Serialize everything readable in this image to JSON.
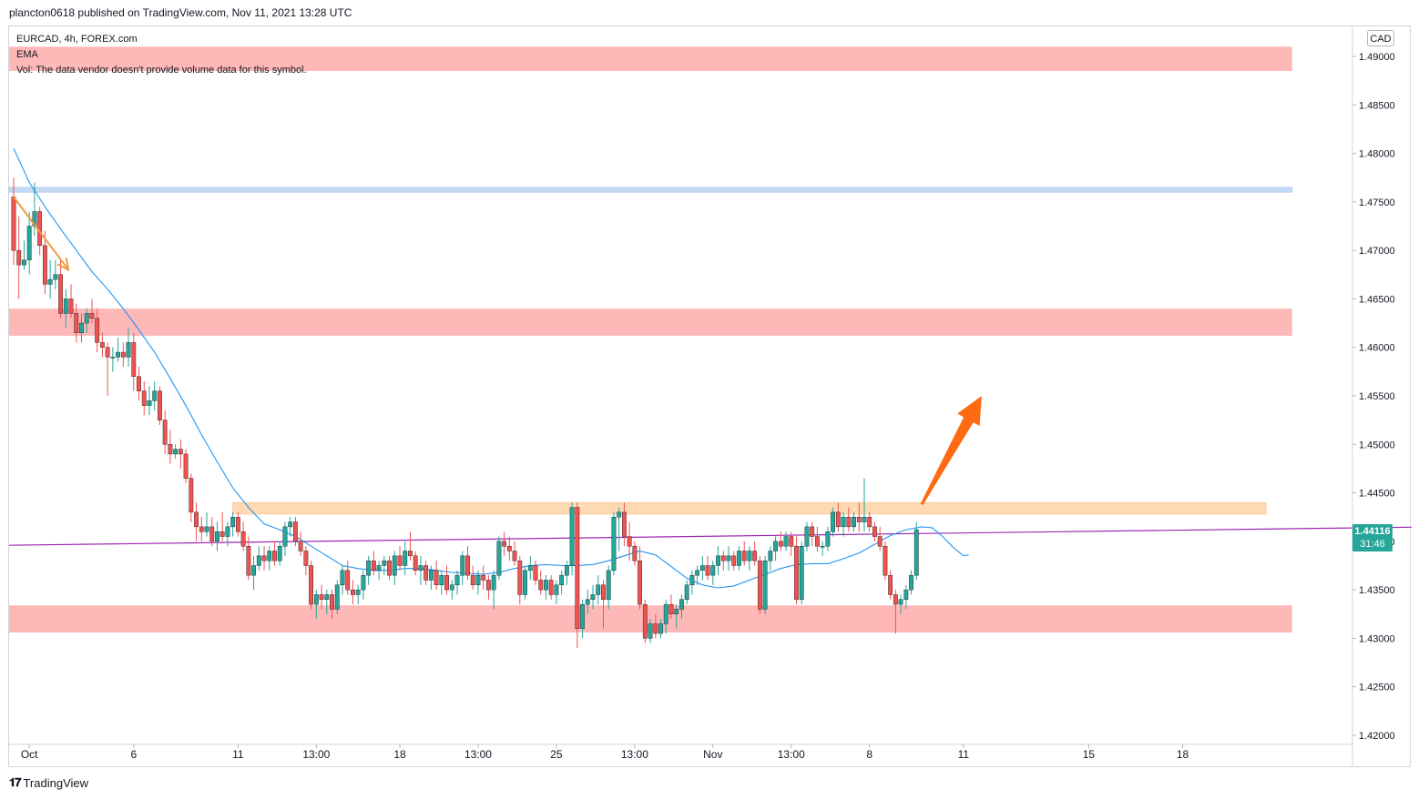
{
  "header": {
    "publish_line": "plancton0618 published on TradingView.com, Nov 11, 2021 13:28 UTC"
  },
  "legend": {
    "symbol_line": "EURCAD, 4h, FOREX.com",
    "indicator_ema": "EMA",
    "volume_notice": "Vol: The data vendor doesn't provide volume data for this symbol."
  },
  "price_axis": {
    "currency": "CAD",
    "last_price": "1.44116",
    "countdown": "31:46"
  },
  "footer": {
    "brand": "TradingView"
  },
  "colors": {
    "up_candle": "#26a69a",
    "down_candle": "#ef5350",
    "ema_line": "#2196f3",
    "trendline": "#9c27b0",
    "zone_red": "#ffb8b8",
    "zone_orange": "#ffd9b3",
    "zone_blue": "#c5daf5",
    "arrow_orange": "#ff6a13",
    "price_tag": "#26a69a"
  },
  "chart_data": {
    "type": "candlestick",
    "symbol": "EURCAD",
    "timeframe": "4h",
    "ylim": [
      1.418,
      1.4925
    ],
    "y_ticks": [
      "1.49000",
      "1.48500",
      "1.48000",
      "1.47500",
      "1.47000",
      "1.46500",
      "1.46000",
      "1.45500",
      "1.45000",
      "1.44500",
      "1.44000",
      "1.43500",
      "1.43000",
      "1.42500",
      "1.42000"
    ],
    "x_ticks": [
      {
        "label": "Oct",
        "bar": 3
      },
      {
        "label": "6",
        "bar": 23
      },
      {
        "label": "11",
        "bar": 43
      },
      {
        "label": "13:00",
        "bar": 58
      },
      {
        "label": "18",
        "bar": 74
      },
      {
        "label": "13:00",
        "bar": 89
      },
      {
        "label": "25",
        "bar": 104
      },
      {
        "label": "13:00",
        "bar": 119
      },
      {
        "label": "Nov",
        "bar": 134
      },
      {
        "label": "13:00",
        "bar": 149
      },
      {
        "label": "8",
        "bar": 164
      },
      {
        "label": "11",
        "bar": 182
      },
      {
        "label": "15",
        "bar": 206
      },
      {
        "label": "18",
        "bar": 224
      }
    ],
    "bars_total_domain": [
      0,
      245
    ],
    "candles": [
      [
        1.4755,
        1.4775,
        1.4685,
        1.47
      ],
      [
        1.47,
        1.4735,
        1.465,
        1.4685
      ],
      [
        1.4685,
        1.471,
        1.468,
        1.469
      ],
      [
        1.469,
        1.474,
        1.4675,
        1.4725
      ],
      [
        1.4725,
        1.477,
        1.4715,
        1.474
      ],
      [
        1.474,
        1.4745,
        1.4695,
        1.4705
      ],
      [
        1.4705,
        1.472,
        1.4655,
        1.4665
      ],
      [
        1.4665,
        1.469,
        1.465,
        1.467
      ],
      [
        1.467,
        1.469,
        1.466,
        1.4675
      ],
      [
        1.4675,
        1.469,
        1.463,
        1.4635
      ],
      [
        1.4635,
        1.466,
        1.462,
        1.465
      ],
      [
        1.465,
        1.4665,
        1.463,
        1.4635
      ],
      [
        1.4635,
        1.4645,
        1.4605,
        1.4615
      ],
      [
        1.4615,
        1.4635,
        1.4605,
        1.4625
      ],
      [
        1.4625,
        1.464,
        1.4615,
        1.4635
      ],
      [
        1.4635,
        1.465,
        1.4625,
        1.463
      ],
      [
        1.463,
        1.464,
        1.4595,
        1.4605
      ],
      [
        1.4605,
        1.4615,
        1.459,
        1.46
      ],
      [
        1.46,
        1.4605,
        1.455,
        1.459
      ],
      [
        1.459,
        1.46,
        1.4575,
        1.459
      ],
      [
        1.459,
        1.461,
        1.4585,
        1.4595
      ],
      [
        1.4595,
        1.4605,
        1.458,
        1.459
      ],
      [
        1.459,
        1.462,
        1.458,
        1.4605
      ],
      [
        1.4605,
        1.4615,
        1.4555,
        1.457
      ],
      [
        1.457,
        1.458,
        1.4545,
        1.4555
      ],
      [
        1.4555,
        1.4565,
        1.453,
        1.454
      ],
      [
        1.454,
        1.456,
        1.453,
        1.4545
      ],
      [
        1.4545,
        1.4565,
        1.4535,
        1.4555
      ],
      [
        1.4555,
        1.456,
        1.452,
        1.4525
      ],
      [
        1.4525,
        1.4535,
        1.449,
        1.45
      ],
      [
        1.45,
        1.4515,
        1.448,
        1.449
      ],
      [
        1.449,
        1.45,
        1.4485,
        1.4495
      ],
      [
        1.4495,
        1.4505,
        1.4475,
        1.449
      ],
      [
        1.449,
        1.4495,
        1.446,
        1.4465
      ],
      [
        1.4465,
        1.447,
        1.442,
        1.443
      ],
      [
        1.443,
        1.444,
        1.44,
        1.4415
      ],
      [
        1.4415,
        1.4425,
        1.44,
        1.441
      ],
      [
        1.441,
        1.443,
        1.4405,
        1.4415
      ],
      [
        1.4415,
        1.4425,
        1.4395,
        1.44
      ],
      [
        1.44,
        1.442,
        1.439,
        1.441
      ],
      [
        1.441,
        1.443,
        1.44,
        1.4405
      ],
      [
        1.4405,
        1.442,
        1.4395,
        1.4415
      ],
      [
        1.4415,
        1.443,
        1.4405,
        1.4425
      ],
      [
        1.4425,
        1.443,
        1.4405,
        1.441
      ],
      [
        1.441,
        1.442,
        1.439,
        1.4395
      ],
      [
        1.4395,
        1.4405,
        1.436,
        1.4365
      ],
      [
        1.4365,
        1.4385,
        1.435,
        1.4375
      ],
      [
        1.4375,
        1.4395,
        1.437,
        1.4385
      ],
      [
        1.4385,
        1.4395,
        1.437,
        1.438
      ],
      [
        1.438,
        1.4395,
        1.437,
        1.439
      ],
      [
        1.439,
        1.44,
        1.4375,
        1.438
      ],
      [
        1.438,
        1.44,
        1.4375,
        1.4395
      ],
      [
        1.4395,
        1.442,
        1.4385,
        1.4415
      ],
      [
        1.4415,
        1.4425,
        1.4405,
        1.442
      ],
      [
        1.442,
        1.4425,
        1.4395,
        1.44
      ],
      [
        1.44,
        1.441,
        1.4385,
        1.439
      ],
      [
        1.439,
        1.4395,
        1.4365,
        1.4375
      ],
      [
        1.4375,
        1.438,
        1.433,
        1.4335
      ],
      [
        1.4335,
        1.435,
        1.432,
        1.4345
      ],
      [
        1.4345,
        1.4355,
        1.433,
        1.434
      ],
      [
        1.434,
        1.435,
        1.4325,
        1.4345
      ],
      [
        1.4345,
        1.435,
        1.432,
        1.433
      ],
      [
        1.433,
        1.436,
        1.4325,
        1.4355
      ],
      [
        1.4355,
        1.4375,
        1.4345,
        1.437
      ],
      [
        1.437,
        1.438,
        1.4345,
        1.435
      ],
      [
        1.435,
        1.436,
        1.4335,
        1.4345
      ],
      [
        1.4345,
        1.4355,
        1.4335,
        1.435
      ],
      [
        1.435,
        1.437,
        1.434,
        1.4365
      ],
      [
        1.4365,
        1.4385,
        1.4355,
        1.438
      ],
      [
        1.438,
        1.439,
        1.4365,
        1.437
      ],
      [
        1.437,
        1.438,
        1.436,
        1.4375
      ],
      [
        1.4375,
        1.4385,
        1.4365,
        1.438
      ],
      [
        1.438,
        1.4385,
        1.436,
        1.4365
      ],
      [
        1.4365,
        1.439,
        1.4355,
        1.4385
      ],
      [
        1.4385,
        1.4395,
        1.437,
        1.4375
      ],
      [
        1.4375,
        1.44,
        1.4365,
        1.439
      ],
      [
        1.439,
        1.441,
        1.438,
        1.4385
      ],
      [
        1.4385,
        1.439,
        1.4365,
        1.437
      ],
      [
        1.437,
        1.4385,
        1.4355,
        1.4375
      ],
      [
        1.4375,
        1.438,
        1.4355,
        1.436
      ],
      [
        1.436,
        1.4375,
        1.435,
        1.437
      ],
      [
        1.437,
        1.438,
        1.435,
        1.4355
      ],
      [
        1.4355,
        1.437,
        1.4345,
        1.4365
      ],
      [
        1.4365,
        1.4375,
        1.4345,
        1.435
      ],
      [
        1.435,
        1.436,
        1.434,
        1.4355
      ],
      [
        1.4355,
        1.437,
        1.4345,
        1.4365
      ],
      [
        1.4365,
        1.439,
        1.4355,
        1.4385
      ],
      [
        1.4385,
        1.4395,
        1.436,
        1.4365
      ],
      [
        1.4365,
        1.4375,
        1.435,
        1.4355
      ],
      [
        1.4355,
        1.437,
        1.4345,
        1.4365
      ],
      [
        1.4365,
        1.4375,
        1.435,
        1.436
      ],
      [
        1.436,
        1.4365,
        1.434,
        1.435
      ],
      [
        1.435,
        1.437,
        1.433,
        1.4365
      ],
      [
        1.4365,
        1.4405,
        1.436,
        1.44
      ],
      [
        1.44,
        1.441,
        1.4385,
        1.4395
      ],
      [
        1.4395,
        1.4405,
        1.438,
        1.439
      ],
      [
        1.439,
        1.44,
        1.4375,
        1.438
      ],
      [
        1.438,
        1.4385,
        1.4335,
        1.4345
      ],
      [
        1.4345,
        1.4375,
        1.434,
        1.437
      ],
      [
        1.437,
        1.4385,
        1.436,
        1.4375
      ],
      [
        1.4375,
        1.438,
        1.4355,
        1.436
      ],
      [
        1.436,
        1.437,
        1.4345,
        1.435
      ],
      [
        1.435,
        1.4365,
        1.434,
        1.436
      ],
      [
        1.436,
        1.4365,
        1.434,
        1.4345
      ],
      [
        1.4345,
        1.436,
        1.4335,
        1.4355
      ],
      [
        1.4355,
        1.437,
        1.4345,
        1.4365
      ],
      [
        1.4365,
        1.438,
        1.4355,
        1.4375
      ],
      [
        1.4375,
        1.444,
        1.4365,
        1.4435
      ],
      [
        1.4435,
        1.444,
        1.429,
        1.431
      ],
      [
        1.431,
        1.434,
        1.43,
        1.4335
      ],
      [
        1.4335,
        1.435,
        1.4325,
        1.434
      ],
      [
        1.434,
        1.4355,
        1.433,
        1.4345
      ],
      [
        1.4345,
        1.4365,
        1.4335,
        1.4355
      ],
      [
        1.4355,
        1.436,
        1.431,
        1.434
      ],
      [
        1.434,
        1.4375,
        1.433,
        1.437
      ],
      [
        1.437,
        1.443,
        1.4365,
        1.4425
      ],
      [
        1.4425,
        1.4435,
        1.439,
        1.443
      ],
      [
        1.443,
        1.444,
        1.4395,
        1.4405
      ],
      [
        1.4405,
        1.442,
        1.438,
        1.4395
      ],
      [
        1.4395,
        1.44,
        1.4375,
        1.438
      ],
      [
        1.438,
        1.4395,
        1.433,
        1.4335
      ],
      [
        1.4335,
        1.434,
        1.4295,
        1.43
      ],
      [
        1.43,
        1.432,
        1.4295,
        1.4315
      ],
      [
        1.4315,
        1.4325,
        1.43,
        1.4305
      ],
      [
        1.4305,
        1.432,
        1.43,
        1.4315
      ],
      [
        1.4315,
        1.434,
        1.4305,
        1.4335
      ],
      [
        1.4335,
        1.4345,
        1.432,
        1.4325
      ],
      [
        1.4325,
        1.4335,
        1.431,
        1.433
      ],
      [
        1.433,
        1.4345,
        1.432,
        1.434
      ],
      [
        1.434,
        1.436,
        1.4335,
        1.4355
      ],
      [
        1.4355,
        1.437,
        1.4345,
        1.4365
      ],
      [
        1.4365,
        1.4375,
        1.4355,
        1.437
      ],
      [
        1.437,
        1.4385,
        1.436,
        1.4375
      ],
      [
        1.4375,
        1.4385,
        1.436,
        1.4365
      ],
      [
        1.4365,
        1.438,
        1.4355,
        1.4375
      ],
      [
        1.4375,
        1.4395,
        1.4365,
        1.4385
      ],
      [
        1.4385,
        1.439,
        1.437,
        1.438
      ],
      [
        1.438,
        1.4395,
        1.437,
        1.4385
      ],
      [
        1.4385,
        1.439,
        1.437,
        1.4375
      ],
      [
        1.4375,
        1.4395,
        1.437,
        1.439
      ],
      [
        1.439,
        1.44,
        1.4375,
        1.438
      ],
      [
        1.438,
        1.4395,
        1.437,
        1.439
      ],
      [
        1.439,
        1.44,
        1.4375,
        1.438
      ],
      [
        1.438,
        1.4385,
        1.4325,
        1.433
      ],
      [
        1.433,
        1.4385,
        1.4325,
        1.438
      ],
      [
        1.438,
        1.4395,
        1.437,
        1.439
      ],
      [
        1.439,
        1.4405,
        1.438,
        1.44
      ],
      [
        1.44,
        1.441,
        1.439,
        1.4395
      ],
      [
        1.4395,
        1.441,
        1.439,
        1.4405
      ],
      [
        1.4405,
        1.441,
        1.4385,
        1.4395
      ],
      [
        1.4395,
        1.4405,
        1.4335,
        1.434
      ],
      [
        1.434,
        1.44,
        1.4335,
        1.4395
      ],
      [
        1.4395,
        1.442,
        1.439,
        1.4415
      ],
      [
        1.4415,
        1.442,
        1.4395,
        1.4405
      ],
      [
        1.4405,
        1.4415,
        1.439,
        1.4395
      ],
      [
        1.4395,
        1.44,
        1.4385,
        1.4395
      ],
      [
        1.4395,
        1.4415,
        1.439,
        1.441
      ],
      [
        1.441,
        1.4435,
        1.4405,
        1.443
      ],
      [
        1.443,
        1.444,
        1.441,
        1.4415
      ],
      [
        1.4415,
        1.443,
        1.4405,
        1.4425
      ],
      [
        1.4425,
        1.4435,
        1.441,
        1.4415
      ],
      [
        1.4415,
        1.443,
        1.441,
        1.4425
      ],
      [
        1.4425,
        1.444,
        1.441,
        1.442
      ],
      [
        1.442,
        1.4465,
        1.441,
        1.4425
      ],
      [
        1.4425,
        1.443,
        1.441,
        1.4415
      ],
      [
        1.4415,
        1.442,
        1.44,
        1.4405
      ],
      [
        1.4405,
        1.4415,
        1.439,
        1.4395
      ],
      [
        1.4395,
        1.44,
        1.436,
        1.4365
      ],
      [
        1.4365,
        1.437,
        1.434,
        1.4345
      ],
      [
        1.4345,
        1.435,
        1.4305,
        1.4335
      ],
      [
        1.4335,
        1.4345,
        1.4325,
        1.434
      ],
      [
        1.434,
        1.4355,
        1.433,
        1.435
      ],
      [
        1.435,
        1.437,
        1.4345,
        1.4365
      ],
      [
        1.4365,
        1.442,
        1.436,
        1.4412
      ]
    ],
    "ema": [
      [
        0,
        1.4805
      ],
      [
        3,
        1.477
      ],
      [
        6,
        1.4745
      ],
      [
        9,
        1.4722
      ],
      [
        12,
        1.47
      ],
      [
        15,
        1.4678
      ],
      [
        18,
        1.466
      ],
      [
        21,
        1.464
      ],
      [
        24,
        1.4618
      ],
      [
        27,
        1.4595
      ],
      [
        30,
        1.4568
      ],
      [
        33,
        1.454
      ],
      [
        36,
        1.451
      ],
      [
        39,
        1.4482
      ],
      [
        42,
        1.4455
      ],
      [
        45,
        1.4435
      ],
      [
        48,
        1.4418
      ],
      [
        51,
        1.4412
      ],
      [
        54,
        1.4405
      ],
      [
        57,
        1.4395
      ],
      [
        60,
        1.4385
      ],
      [
        63,
        1.4375
      ],
      [
        66,
        1.4372
      ],
      [
        69,
        1.437
      ],
      [
        72,
        1.437
      ],
      [
        75,
        1.4372
      ],
      [
        78,
        1.4372
      ],
      [
        81,
        1.437
      ],
      [
        84,
        1.4368
      ],
      [
        87,
        1.4367
      ],
      [
        90,
        1.4366
      ],
      [
        93,
        1.4368
      ],
      [
        96,
        1.4372
      ],
      [
        99,
        1.4375
      ],
      [
        102,
        1.4376
      ],
      [
        105,
        1.4375
      ],
      [
        108,
        1.4375
      ],
      [
        111,
        1.4376
      ],
      [
        114,
        1.438
      ],
      [
        117,
        1.4385
      ],
      [
        120,
        1.439
      ],
      [
        123,
        1.4386
      ],
      [
        126,
        1.4374
      ],
      [
        129,
        1.4362
      ],
      [
        132,
        1.4355
      ],
      [
        135,
        1.4352
      ],
      [
        138,
        1.4354
      ],
      [
        141,
        1.436
      ],
      [
        144,
        1.4366
      ],
      [
        147,
        1.4372
      ],
      [
        150,
        1.4376
      ],
      [
        153,
        1.4377
      ],
      [
        156,
        1.4377
      ],
      [
        159,
        1.4382
      ],
      [
        162,
        1.4388
      ],
      [
        165,
        1.4397
      ],
      [
        168,
        1.4406
      ],
      [
        171,
        1.4412
      ],
      [
        174,
        1.4415
      ],
      [
        176,
        1.4414
      ],
      [
        178,
        1.4405
      ],
      [
        180,
        1.4394
      ],
      [
        182,
        1.4385
      ],
      [
        183,
        1.4386
      ]
    ],
    "zones": [
      {
        "name": "upper-red-zone",
        "y_top": 1.491,
        "y_bottom": 1.4885,
        "x_from": 0,
        "x_to": 245,
        "color": "zone_red"
      },
      {
        "name": "blue-resistance-zone",
        "y_top": 1.4765,
        "y_bottom": 1.476,
        "x_from": 0,
        "x_to": 245,
        "color": "zone_blue"
      },
      {
        "name": "middle-red-zone",
        "y_top": 1.464,
        "y_bottom": 1.4612,
        "x_from": 0,
        "x_to": 245,
        "color": "zone_red"
      },
      {
        "name": "orange-resistance-zone",
        "y_top": 1.444,
        "y_bottom": 1.4428,
        "x_from": 42,
        "x_to": 240,
        "color": "zone_orange"
      },
      {
        "name": "lower-red-zone",
        "y_top": 1.4334,
        "y_bottom": 1.4306,
        "x_from": 0,
        "x_to": 245,
        "color": "zone_red"
      }
    ],
    "trendline": {
      "from": [
        0,
        1.4396
      ],
      "to": [
        245,
        1.4413
      ]
    },
    "annotations": [
      {
        "name": "down-arrow",
        "from": [
          0,
          1.4755
        ],
        "to": [
          10.5,
          1.468
        ],
        "color": "#f19a3e"
      },
      {
        "name": "up-arrow",
        "from": [
          174,
          1.4438
        ],
        "to": [
          185.5,
          1.455
        ],
        "color": "arrow_orange"
      }
    ]
  }
}
